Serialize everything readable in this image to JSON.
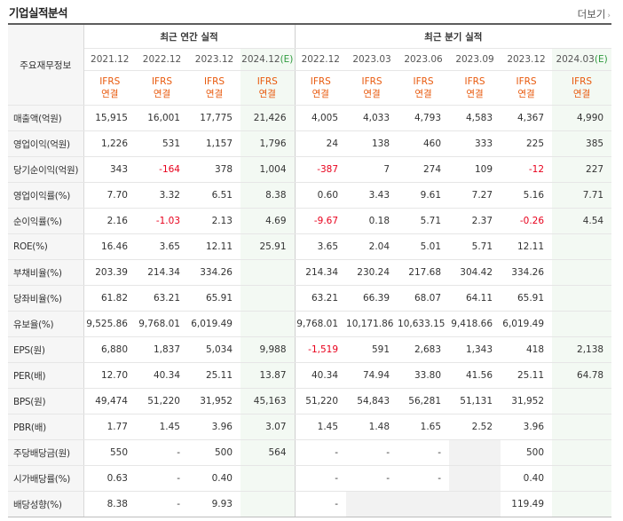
{
  "header": {
    "title": "기업실적분석",
    "more_label": "더보기"
  },
  "table": {
    "row_header_label": "주요재무정보",
    "annual_title": "최근 연간 실적",
    "quarter_title": "최근 분기 실적",
    "annual_periods": [
      {
        "label": "2021.12",
        "est": false
      },
      {
        "label": "2022.12",
        "est": false
      },
      {
        "label": "2023.12",
        "est": false
      },
      {
        "label": "2024.12",
        "est_suffix": "(E)",
        "est": true
      }
    ],
    "quarter_periods": [
      {
        "label": "2022.12",
        "est": false
      },
      {
        "label": "2023.03",
        "est": false
      },
      {
        "label": "2023.06",
        "est": false
      },
      {
        "label": "2023.09",
        "est": false
      },
      {
        "label": "2023.12",
        "est": false
      },
      {
        "label": "2024.03",
        "est_suffix": "(E)",
        "est": true
      }
    ],
    "basis_line1": "IFRS",
    "basis_line2": "연결",
    "rows": [
      {
        "label": "매출액(억원)",
        "annual": [
          "15,915",
          "16,001",
          "17,775",
          "21,426"
        ],
        "quarter": [
          "4,005",
          "4,033",
          "4,793",
          "4,583",
          "4,367",
          "4,990"
        ]
      },
      {
        "label": "영업이익(억원)",
        "annual": [
          "1,226",
          "531",
          "1,157",
          "1,796"
        ],
        "quarter": [
          "24",
          "138",
          "460",
          "333",
          "225",
          "385"
        ]
      },
      {
        "label": "당기순이익(억원)",
        "annual": [
          "343",
          "-164",
          "378",
          "1,004"
        ],
        "quarter": [
          "-387",
          "7",
          "274",
          "109",
          "-12",
          "227"
        ]
      },
      {
        "label": "영업이익률(%)",
        "annual": [
          "7.70",
          "3.32",
          "6.51",
          "8.38"
        ],
        "quarter": [
          "0.60",
          "3.43",
          "9.61",
          "7.27",
          "5.16",
          "7.71"
        ]
      },
      {
        "label": "순이익률(%)",
        "annual": [
          "2.16",
          "-1.03",
          "2.13",
          "4.69"
        ],
        "quarter": [
          "-9.67",
          "0.18",
          "5.71",
          "2.37",
          "-0.26",
          "4.54"
        ]
      },
      {
        "label": "ROE(%)",
        "annual": [
          "16.46",
          "3.65",
          "12.11",
          "25.91"
        ],
        "quarter": [
          "3.65",
          "2.04",
          "5.01",
          "5.71",
          "12.11",
          ""
        ]
      },
      {
        "label": "부채비율(%)",
        "annual": [
          "203.39",
          "214.34",
          "334.26",
          ""
        ],
        "quarter": [
          "214.34",
          "230.24",
          "217.68",
          "304.42",
          "334.26",
          ""
        ]
      },
      {
        "label": "당좌비율(%)",
        "annual": [
          "61.82",
          "63.21",
          "65.91",
          ""
        ],
        "quarter": [
          "63.21",
          "66.39",
          "68.07",
          "64.11",
          "65.91",
          ""
        ]
      },
      {
        "label": "유보율(%)",
        "annual": [
          "9,525.86",
          "9,768.01",
          "6,019.49",
          ""
        ],
        "quarter": [
          "9,768.01",
          "10,171.86",
          "10,633.15",
          "9,418.66",
          "6,019.49",
          ""
        ]
      },
      {
        "label": "EPS(원)",
        "annual": [
          "6,880",
          "1,837",
          "5,034",
          "9,988"
        ],
        "quarter": [
          "-1,519",
          "591",
          "2,683",
          "1,343",
          "418",
          "2,138"
        ]
      },
      {
        "label": "PER(배)",
        "annual": [
          "12.70",
          "40.34",
          "25.11",
          "13.87"
        ],
        "quarter": [
          "40.34",
          "74.94",
          "33.80",
          "41.56",
          "25.11",
          "64.78"
        ]
      },
      {
        "label": "BPS(원)",
        "annual": [
          "49,474",
          "51,220",
          "31,952",
          "45,163"
        ],
        "quarter": [
          "51,220",
          "54,843",
          "56,281",
          "51,131",
          "31,952",
          ""
        ]
      },
      {
        "label": "PBR(배)",
        "annual": [
          "1.77",
          "1.45",
          "3.96",
          "3.07"
        ],
        "quarter": [
          "1.45",
          "1.48",
          "1.65",
          "2.52",
          "3.96",
          ""
        ]
      },
      {
        "label": "주당배당금(원)",
        "annual": [
          "550",
          "-",
          "500",
          "564"
        ],
        "quarter": [
          "-",
          "-",
          "-",
          "",
          "500",
          ""
        ]
      },
      {
        "label": "시가배당률(%)",
        "annual": [
          "0.63",
          "-",
          "0.40",
          ""
        ],
        "quarter": [
          "-",
          "-",
          "-",
          "",
          "0.40",
          ""
        ]
      },
      {
        "label": "배당성향(%)",
        "annual": [
          "8.38",
          "-",
          "9.93",
          ""
        ],
        "quarter": [
          "-",
          "",
          "",
          "",
          "119.49",
          ""
        ]
      }
    ]
  }
}
